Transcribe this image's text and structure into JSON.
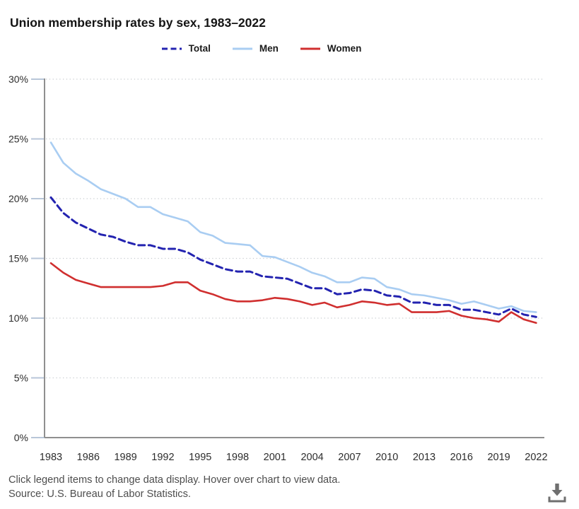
{
  "header": {
    "title": "Union membership rates by sex, 1983–2022"
  },
  "legend": {
    "items": [
      {
        "label": "Total",
        "color": "#2323b0",
        "style": "dashed"
      },
      {
        "label": "Men",
        "color": "#a9cdf2",
        "style": "solid"
      },
      {
        "label": "Women",
        "color": "#d02f2f",
        "style": "solid"
      }
    ]
  },
  "footer": {
    "hint": "Click legend items to change data display. Hover over chart to view data.",
    "source": "Source: U.S. Bureau of Labor Statistics.",
    "download_icon": "download-icon"
  },
  "colors": {
    "total_line": "#2323b0",
    "men_line": "#a9cdf2",
    "women_line": "#d02f2f",
    "gridline": "#c9cdd1",
    "axis": "#8f8f8f",
    "icon_gray": "#6f6f6f"
  },
  "chart_data": {
    "type": "line",
    "title": "Union membership rates by sex, 1983–2022",
    "xlabel": "",
    "ylabel": "",
    "ylim": [
      0,
      30
    ],
    "grid": "dotted-horizontal",
    "legend_position": "top-center",
    "x": [
      1983,
      1984,
      1985,
      1986,
      1987,
      1988,
      1989,
      1990,
      1991,
      1992,
      1993,
      1994,
      1995,
      1996,
      1997,
      1998,
      1999,
      2000,
      2001,
      2002,
      2003,
      2004,
      2005,
      2006,
      2007,
      2008,
      2009,
      2010,
      2011,
      2012,
      2013,
      2014,
      2015,
      2016,
      2017,
      2018,
      2019,
      2020,
      2021,
      2022
    ],
    "xticks": [
      1983,
      1986,
      1989,
      1992,
      1995,
      1998,
      2001,
      2004,
      2007,
      2010,
      2013,
      2016,
      2019,
      2022
    ],
    "yticks": [
      "0%",
      "5%",
      "10%",
      "15%",
      "20%",
      "25%",
      "30%"
    ],
    "series": [
      {
        "name": "Men",
        "line": "solid",
        "color": "#a9cdf2",
        "values": [
          24.7,
          23.0,
          22.1,
          21.5,
          20.8,
          20.4,
          20.0,
          19.3,
          19.3,
          18.7,
          18.4,
          18.1,
          17.2,
          16.9,
          16.3,
          16.2,
          16.1,
          15.2,
          15.1,
          14.7,
          14.3,
          13.8,
          13.5,
          13.0,
          13.0,
          13.4,
          13.3,
          12.6,
          12.4,
          12.0,
          11.9,
          11.7,
          11.5,
          11.2,
          11.4,
          11.1,
          10.8,
          11.0,
          10.6,
          10.5
        ]
      },
      {
        "name": "Women",
        "line": "solid",
        "color": "#d02f2f",
        "values": [
          14.6,
          13.8,
          13.2,
          12.9,
          12.6,
          12.6,
          12.6,
          12.6,
          12.6,
          12.7,
          13.0,
          13.0,
          12.3,
          12.0,
          11.6,
          11.4,
          11.4,
          11.5,
          11.7,
          11.6,
          11.4,
          11.1,
          11.3,
          10.9,
          11.1,
          11.4,
          11.3,
          11.1,
          11.2,
          10.5,
          10.5,
          10.5,
          10.6,
          10.2,
          10.0,
          9.9,
          9.7,
          10.5,
          9.9,
          9.6
        ]
      },
      {
        "name": "Total",
        "line": "dashed",
        "color": "#2323b0",
        "values": [
          20.1,
          18.8,
          18.0,
          17.5,
          17.0,
          16.8,
          16.4,
          16.1,
          16.1,
          15.8,
          15.8,
          15.5,
          14.9,
          14.5,
          14.1,
          13.9,
          13.9,
          13.5,
          13.4,
          13.3,
          12.9,
          12.5,
          12.5,
          12.0,
          12.1,
          12.4,
          12.3,
          11.9,
          11.8,
          11.3,
          11.3,
          11.1,
          11.1,
          10.7,
          10.7,
          10.5,
          10.3,
          10.8,
          10.3,
          10.1
        ]
      }
    ]
  }
}
